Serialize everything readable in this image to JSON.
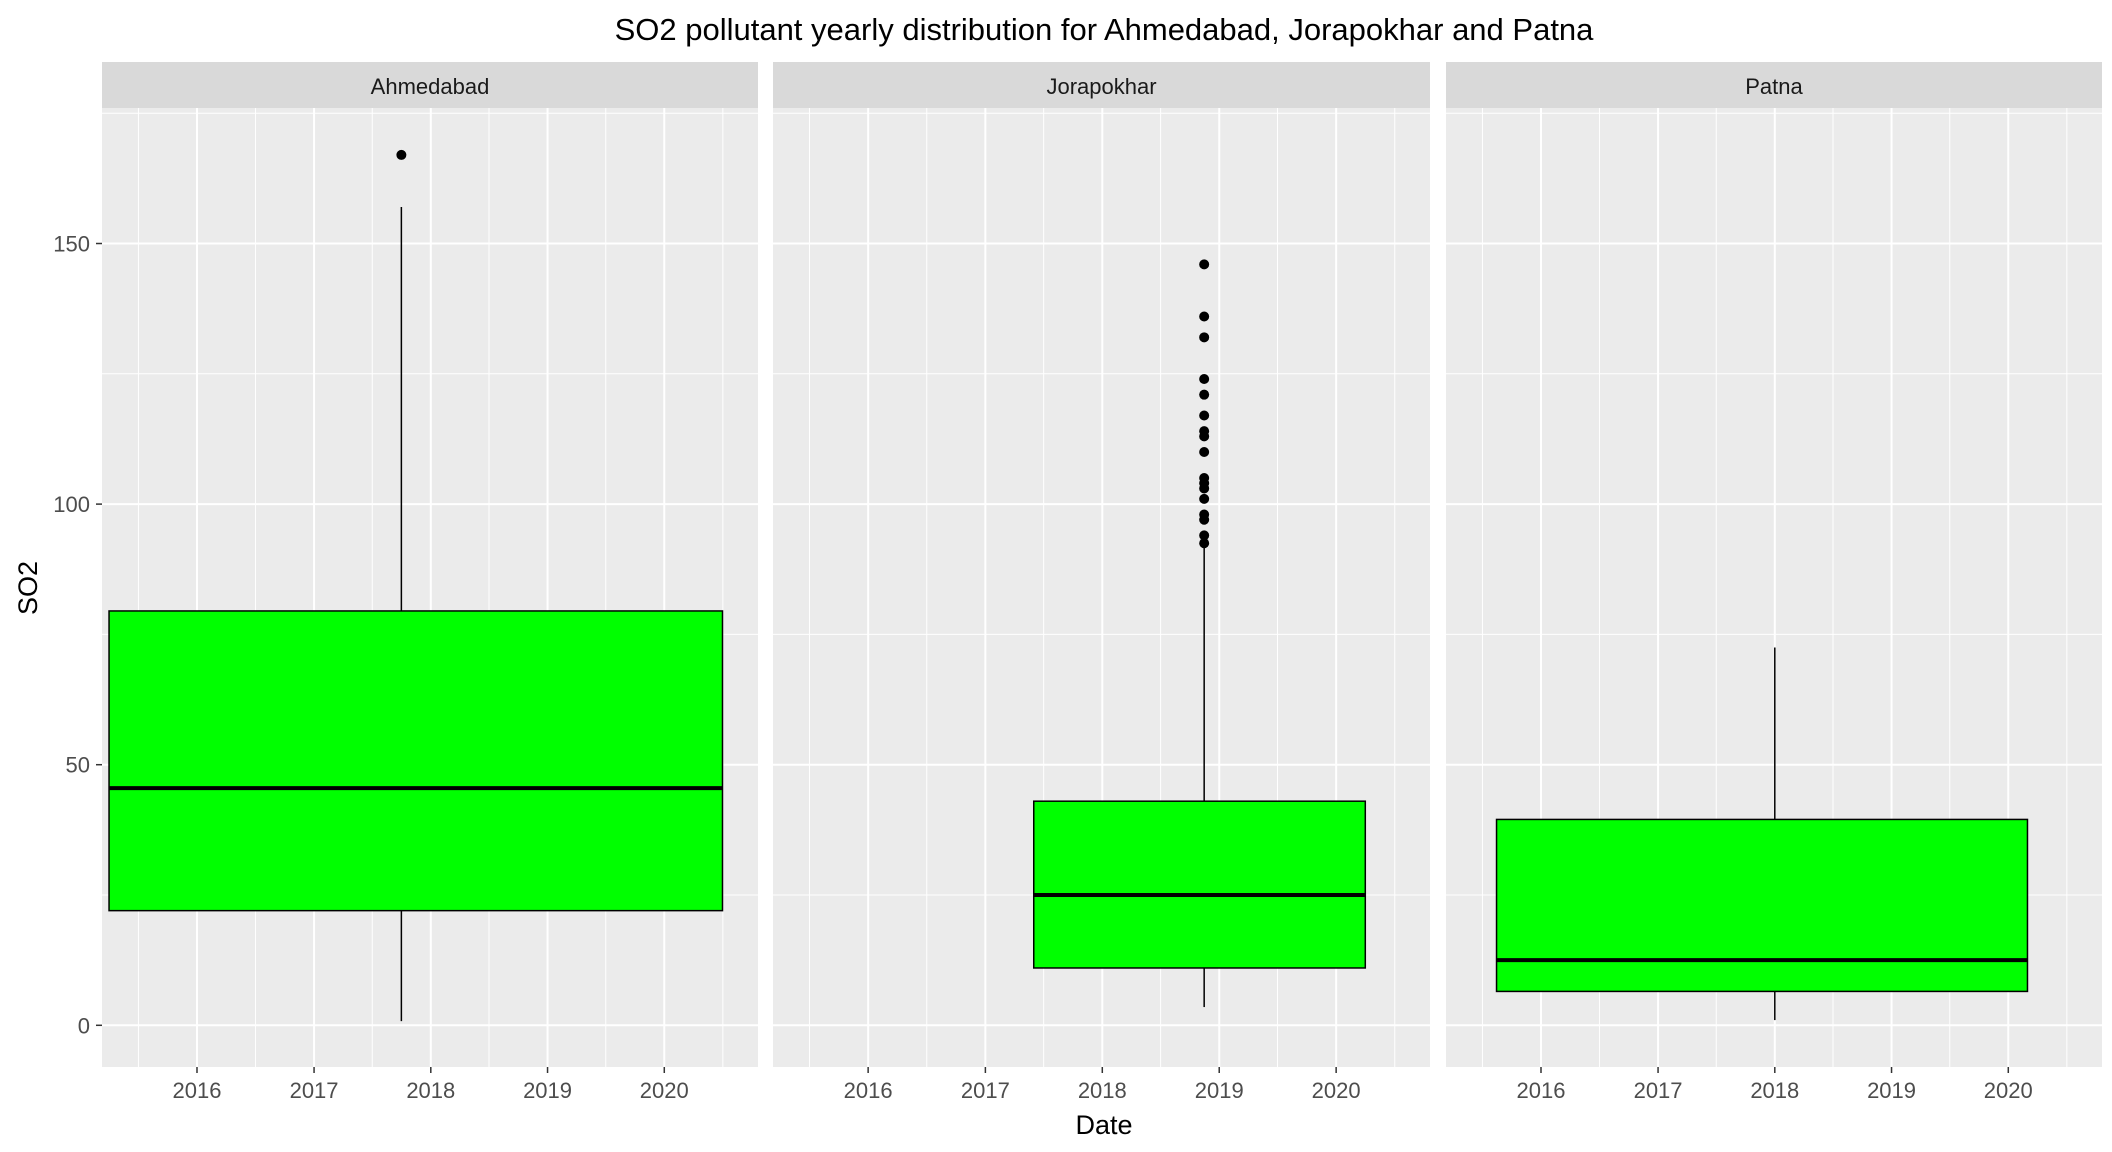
{
  "title": "SO2 pollutant yearly distribution for Ahmedabad, Jorapokhar and Patna",
  "chart_data": {
    "type": "boxplot",
    "title": "SO2 pollutant yearly distribution for Ahmedabad, Jorapokhar and Patna",
    "xlabel": "Date",
    "ylabel": "SO2",
    "x_ticks": [
      "2016",
      "2017",
      "2018",
      "2019",
      "2020"
    ],
    "y_ticks": [
      0,
      50,
      100,
      150
    ],
    "ylim": [
      -8,
      176
    ],
    "grid": true,
    "colors": {
      "box_fill": "#00ff00",
      "box_border": "#000000",
      "panel_background": "#ebebeb",
      "strip_background": "#d9d9d9",
      "gridline": "#ffffff",
      "outlier": "#000000"
    },
    "facets": [
      {
        "name": "Ahmedabad",
        "x_start": "2015-04-01",
        "x_end": "2020-07-01",
        "x_center": "2017-10-01",
        "min": 0.8,
        "q1": 22,
        "median": 45.5,
        "q3": 79.5,
        "max": 157,
        "outliers": [
          167
        ]
      },
      {
        "name": "Jorapokhar",
        "x_start": "2017-06-01",
        "x_end": "2020-04-01",
        "x_center": "2018-11-15",
        "min": 3.5,
        "q1": 11,
        "median": 25,
        "q3": 43,
        "max": 92,
        "outliers": [
          92.5,
          94,
          97,
          98,
          101,
          103,
          104,
          105,
          110,
          113,
          114,
          117,
          121,
          124,
          132,
          136,
          146
        ]
      },
      {
        "name": "Patna",
        "x_start": "2015-08-15",
        "x_end": "2020-03-01",
        "x_center": "2018-01-01",
        "min": 1,
        "q1": 6.5,
        "median": 12.5,
        "q3": 39.5,
        "max": 72.5,
        "outliers": []
      }
    ]
  }
}
